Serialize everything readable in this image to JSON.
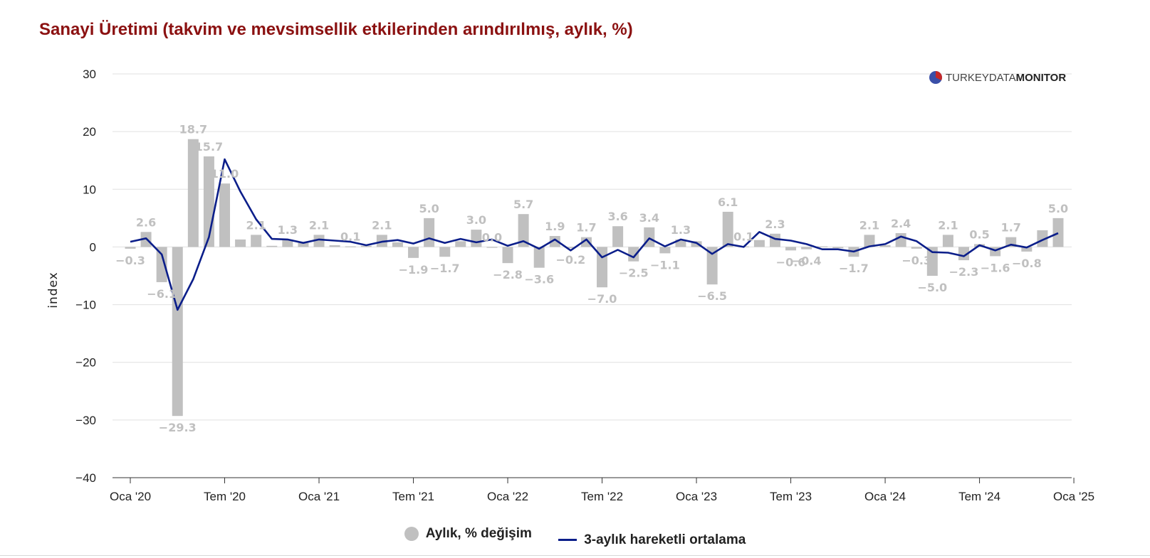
{
  "title": "Sanayi Üretimi (takvim ve mevsimsellik etkilerinden arındırılmış, aylık, %)",
  "logo": {
    "part1": "TURKEYDATA",
    "part2": "MONITOR"
  },
  "legend": {
    "bar_label": "Aylık, % değişim",
    "line_label": "3-aylık hareketli ortalama"
  },
  "colors": {
    "title": "#8b1111",
    "bar": "#c0c0c0",
    "line": "#0b1e8a",
    "grid": "#e0e0e0"
  },
  "chart_data": {
    "type": "bar+line",
    "title": "Sanayi Üretimi (takvim ve mevsimsellik etkilerinden arındırılmış, aylık, %)",
    "ylabel": "index",
    "ylim": [
      -40,
      30
    ],
    "yticks": [
      30,
      20,
      10,
      0,
      -10,
      -20,
      -30,
      -40
    ],
    "ytick_labels": [
      "30",
      "20",
      "10",
      "0",
      "−10",
      "−20",
      "−30",
      "−40"
    ],
    "xtick_labels": [
      {
        "label": "Oca '20",
        "index": 0
      },
      {
        "label": "Tem '20",
        "index": 6
      },
      {
        "label": "Oca '21",
        "index": 12
      },
      {
        "label": "Tem '21",
        "index": 18
      },
      {
        "label": "Oca '22",
        "index": 24
      },
      {
        "label": "Tem '22",
        "index": 30
      },
      {
        "label": "Oca '23",
        "index": 36
      },
      {
        "label": "Tem '23",
        "index": 42
      },
      {
        "label": "Oca '24",
        "index": 48
      },
      {
        "label": "Tem '24",
        "index": 54
      },
      {
        "label": "Oca '25",
        "index": 60
      }
    ],
    "series": [
      {
        "name": "Aylık, % değişim",
        "type": "bar",
        "values": [
          -0.3,
          2.6,
          -6.1,
          -29.3,
          18.7,
          15.7,
          11.0,
          1.3,
          2.1,
          0.2,
          1.3,
          0.7,
          2.1,
          0.3,
          0.1,
          0.2,
          2.1,
          0.8,
          -1.9,
          5.0,
          -1.7,
          1.0,
          3.0,
          0.0,
          -2.8,
          5.7,
          -3.6,
          1.9,
          -0.2,
          1.7,
          -7.0,
          3.6,
          -2.5,
          3.4,
          -1.1,
          1.3,
          1.0,
          -6.5,
          6.1,
          0.1,
          1.2,
          2.3,
          -0.6,
          -0.4,
          0.1,
          -0.2,
          -1.7,
          2.1,
          0.3,
          2.4,
          -0.3,
          -5.0,
          2.1,
          -2.3,
          0.5,
          -1.6,
          1.7,
          -0.8,
          2.9,
          5.0
        ],
        "data_labels": [
          "−0.3",
          "2.6",
          "−6.1",
          "−29.3",
          "18.7",
          "15.7",
          "11.0",
          "",
          "2.1",
          "",
          "1.3",
          "",
          "2.1",
          "",
          "0.1",
          "",
          "2.1",
          "",
          "−1.9",
          "5.0",
          "−1.7",
          "",
          "3.0",
          "0.0",
          "−2.8",
          "5.7",
          "−3.6",
          "1.9",
          "−0.2",
          "1.7",
          "−7.0",
          "3.6",
          "−2.5",
          "3.4",
          "−1.1",
          "1.3",
          "",
          "−6.5",
          "6.1",
          "0.1",
          "",
          "2.3",
          "−0.6",
          "−0.4",
          "",
          "",
          "−1.7",
          "2.1",
          "",
          "2.4",
          "−0.3",
          "−5.0",
          "2.1",
          "−2.3",
          "0.5",
          "−1.6",
          "1.7",
          "−0.8",
          "",
          "5.0"
        ]
      },
      {
        "name": "3-aylık hareketli ortalama",
        "type": "line",
        "values": [
          0.9,
          1.5,
          -1.3,
          -10.9,
          -5.6,
          1.7,
          15.2,
          9.6,
          4.8,
          1.4,
          1.3,
          0.7,
          1.3,
          1.1,
          0.9,
          0.3,
          0.9,
          1.2,
          0.6,
          1.5,
          0.7,
          1.4,
          0.8,
          1.3,
          0.2,
          1.0,
          -0.3,
          1.3,
          -0.6,
          1.3,
          -1.8,
          -0.5,
          -1.8,
          1.5,
          0.1,
          1.3,
          0.7,
          -1.2,
          0.5,
          0.0,
          2.6,
          1.4,
          1.1,
          0.5,
          -0.4,
          -0.4,
          -0.8,
          0.1,
          0.5,
          1.8,
          1.0,
          -0.9,
          -1.0,
          -1.6,
          0.3,
          -0.6,
          0.4,
          -0.1,
          1.2,
          2.4
        ]
      }
    ],
    "legend": [
      "Aylık, % değişim",
      "3-aylık hareketli ortalama"
    ],
    "grid": true
  }
}
